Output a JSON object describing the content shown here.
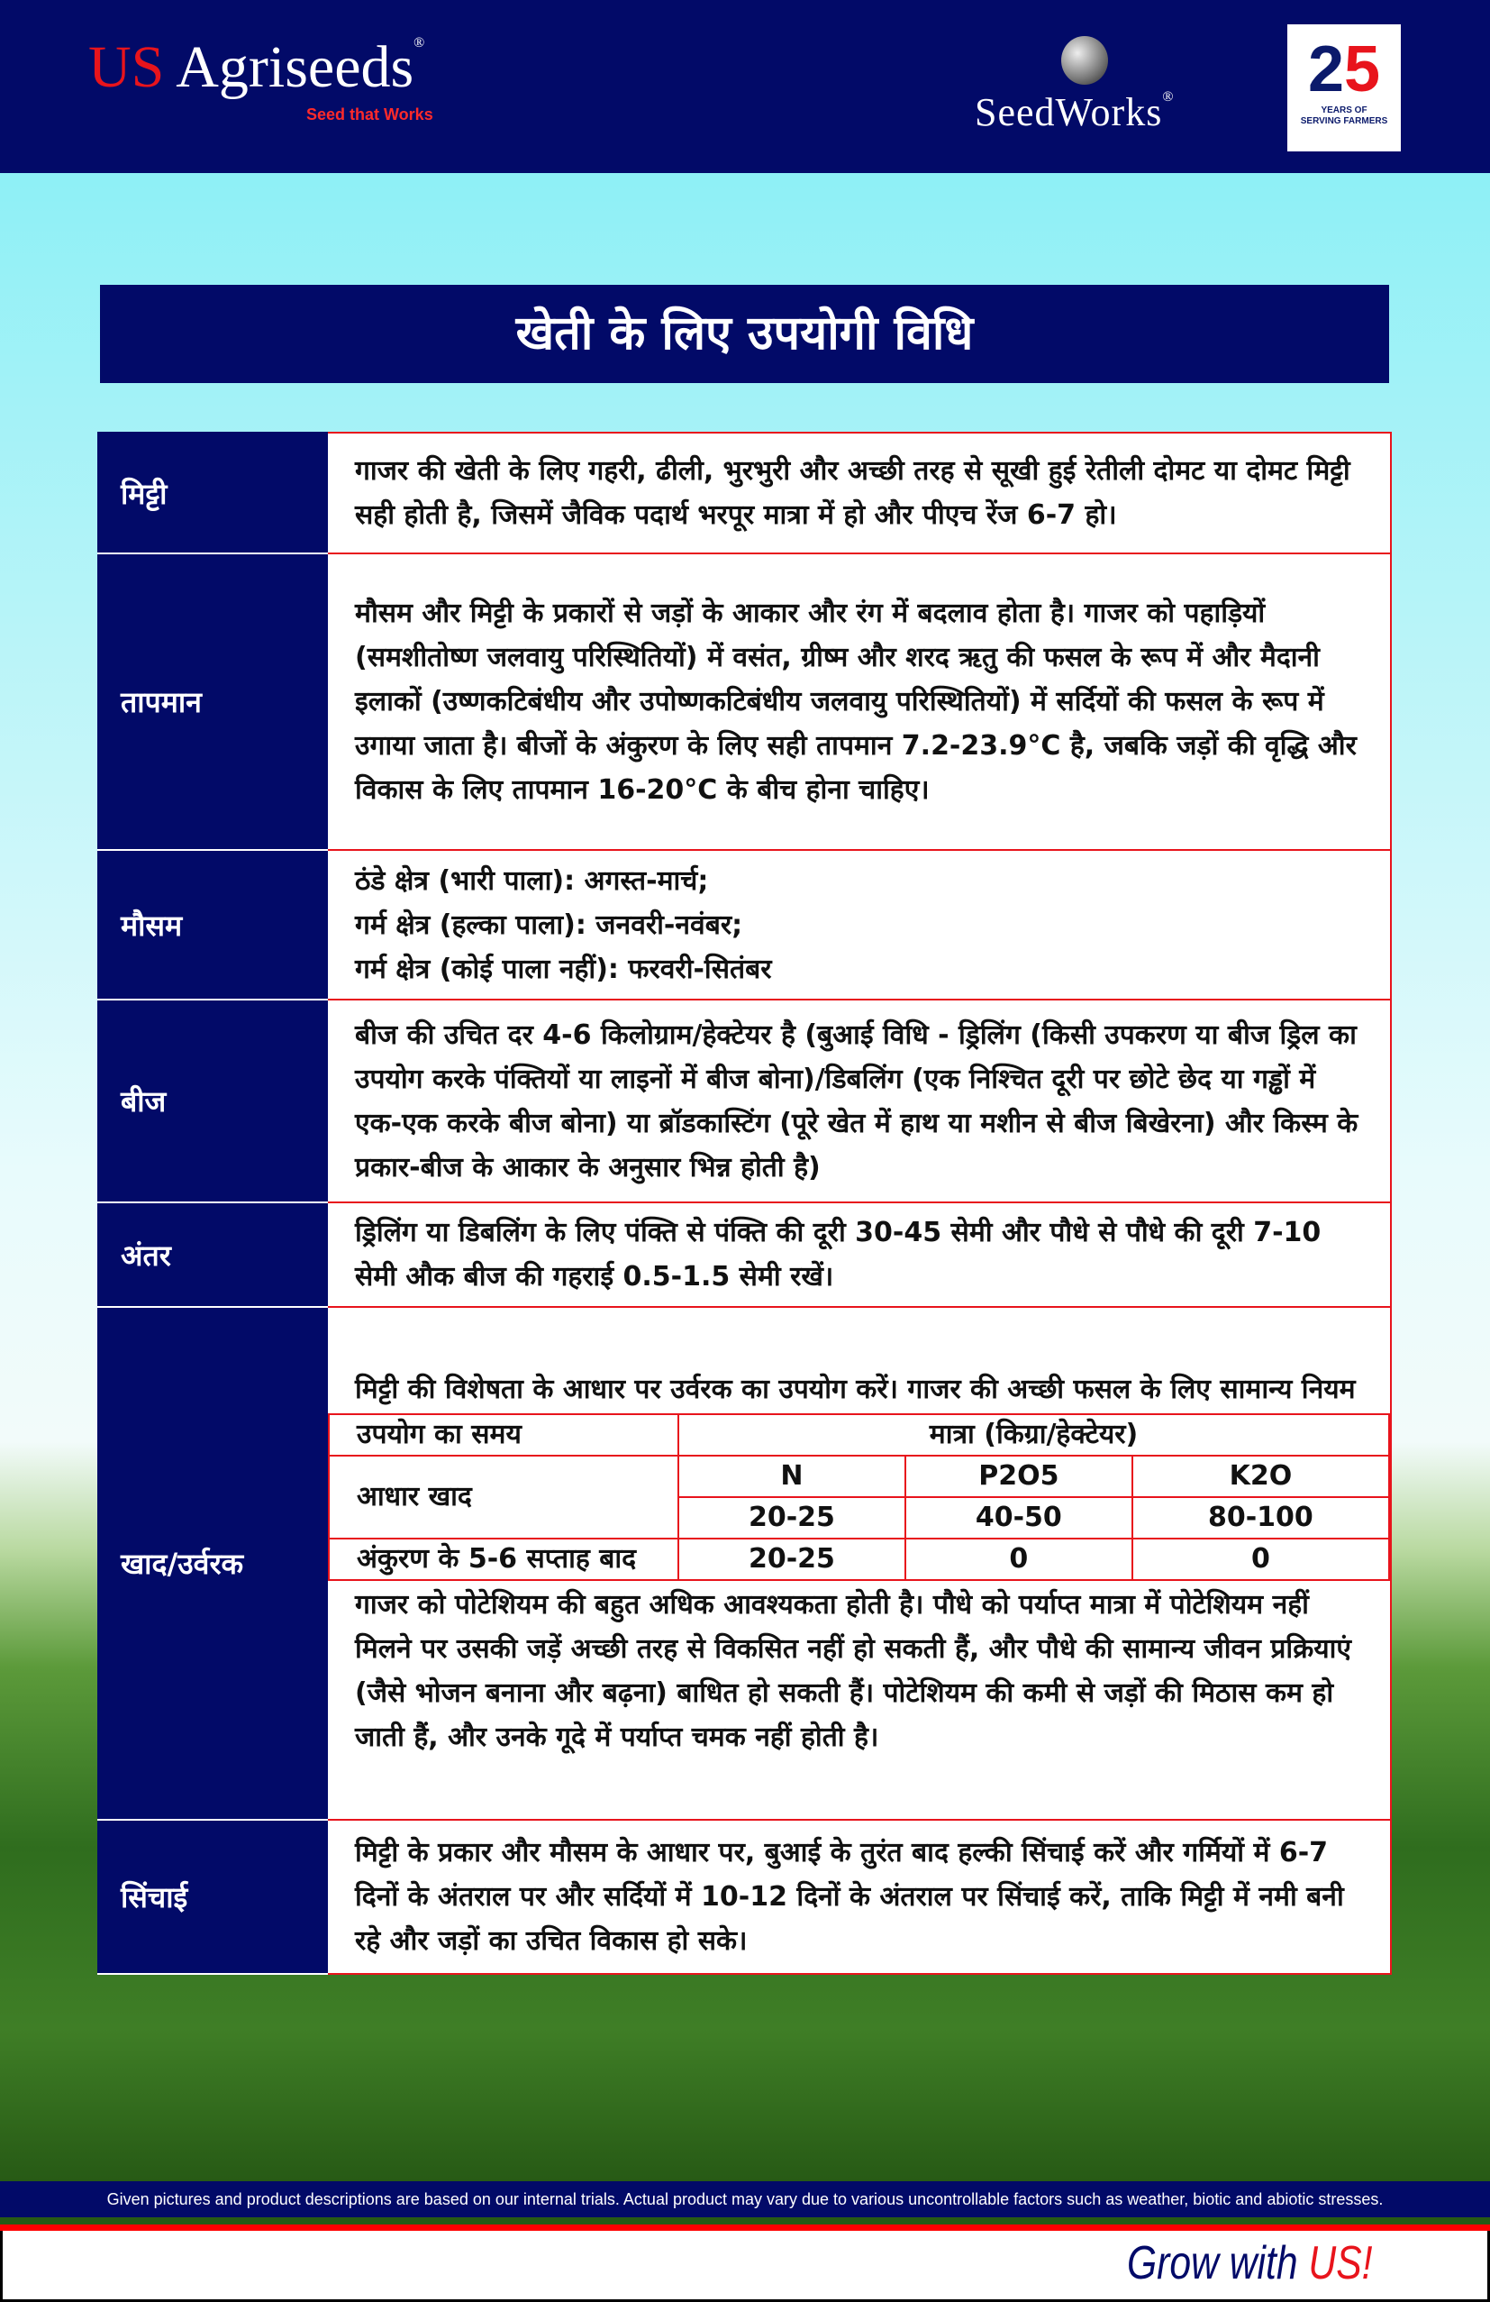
{
  "header": {
    "brand_us": "US",
    "brand_name": "Agriseeds",
    "brand_reg": "®",
    "tagline": "Seed that Works",
    "seedworks": "SeedWorks",
    "seedworks_reg": "®",
    "badge_num_2": "2",
    "badge_num_5": "5",
    "badge_line1": "YEARS OF",
    "badge_line2": "SERVING FARMERS"
  },
  "title": "खेती के लिए उपयोगी विधि",
  "rows": [
    {
      "label": "मिट्टी",
      "text": "गाजर की खेती के लिए गहरी, ढीली, भुरभुरी और अच्छी तरह से सूखी हुई रेतीली दोमट या दोमट मिट्टी सही होती है, जिसमें जैविक पदार्थ भरपूर मात्रा में हो और पीएच रेंज 6-7 हो।"
    },
    {
      "label": "तापमान",
      "text": "मौसम और मिट्टी के प्रकारों से जड़ों के आकार और रंग में बदलाव होता है। गाजर को पहाड़ियों (समशीतोष्ण जलवायु परिस्थितियों) में वसंत, ग्रीष्म और शरद ऋतु की फसल के रूप में और मैदानी इलाकों (उष्णकटिबंधीय और उपोष्णकटिबंधीय जलवायु परिस्थितियों) में सर्दियों की फसल के रूप में उगाया जाता है। बीजों के अंकुरण के लिए सही तापमान 7.2-23.9°C है, जबकि जड़ों की वृद्धि और विकास के लिए तापमान 16-20°C के बीच होना चाहिए।"
    },
    {
      "label": "मौसम",
      "lines": [
        "ठंडे क्षेत्र (भारी पाला): अगस्त-मार्च;",
        "गर्म क्षेत्र (हल्का पाला): जनवरी-नवंबर;",
        "गर्म क्षेत्र (कोई पाला नहीं): फरवरी-सितंबर"
      ]
    },
    {
      "label": "बीज",
      "text": "बीज की उचित दर 4-6 किलोग्राम/हेक्टेयर है (बुआई विधि - ड्रिलिंग (किसी उपकरण या बीज ड्रिल का उपयोग करके पंक्तियों या लाइनों में बीज बोना)/डिबलिंग (एक निश्चित दूरी पर छोटे छेद या गड्ढों में एक-एक करके बीज बोना) या ब्रॉडकास्टिंग (पूरे खेत में हाथ या मशीन से बीज बिखेरना) और किस्म के प्रकार-बीज के आकार के अनुसार भिन्न होती है)"
    },
    {
      "label": "अंतर",
      "text": "ड्रिलिंग या डिबलिंग के लिए पंक्ति से पंक्ति की दूरी 30-45 सेमी और पौधे से पौधे की दूरी 7-10 सेमी औक बीज की गहराई 0.5-1.5 सेमी रखें।"
    },
    {
      "label": "खाद/उर्वरक",
      "intro": "मिट्टी की विशेषता के आधार पर उर्वरक का उपयोग करें। गाजर की अच्छी फसल के लिए सामान्य नियम",
      "table": {
        "time_header": "उपयोग का समय",
        "qty_header": "मात्रा (किग्रा/हेक्टेयर)",
        "nutrients": [
          "N",
          "P2O5",
          "K2O"
        ],
        "rows": [
          {
            "time": "आधार खाद",
            "values": [
              "20-25",
              "40-50",
              "80-100"
            ]
          },
          {
            "time": "अंकुरण के 5-6 सप्ताह बाद",
            "values": [
              "20-25",
              "0",
              "0"
            ]
          }
        ]
      },
      "outro": "गाजर को पोटेशियम की बहुत अधिक आवश्यकता होती है। पौधे को पर्याप्त मात्रा में पोटेशियम नहीं मिलने पर उसकी जड़ें अच्छी तरह से विकसित नहीं हो सकती हैं, और पौधे की सामान्य जीवन प्रक्रियाएं (जैसे भोजन बनाना और बढ़ना) बाधित हो सकती हैं। पोटेशियम की कमी से जड़ों की मिठास कम हो जाती हैं, और उनके गूदे में पर्याप्त चमक नहीं होती है।"
    },
    {
      "label": "सिंचाई",
      "text": "मिट्टी के प्रकार और मौसम के आधार पर, बुआई के तुरंत बाद हल्की सिंचाई करें और गर्मियों में 6-7 दिनों के अंतराल पर और सर्दियों में 10-12 दिनों के अंतराल पर सिंचाई करें, ताकि मिट्टी में नमी बनी रहे और जड़ों का उचित विकास हो सके।"
    }
  ],
  "disclaimer": "Given pictures and product descriptions are based on our internal trials. Actual product may vary due to various uncontrollable factors such as weather, biotic and abiotic stresses.",
  "slogan": {
    "prefix": "Grow with ",
    "us": "US",
    "suffix": "!"
  },
  "colors": {
    "navy": "#020a68",
    "red": "#e8141c"
  }
}
